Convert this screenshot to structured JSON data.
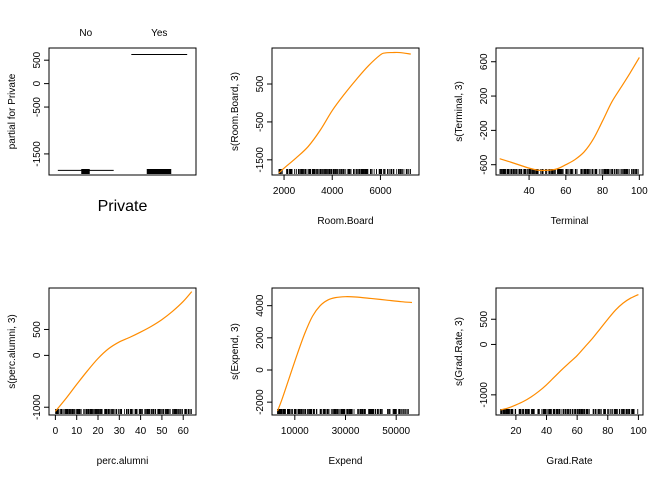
{
  "colors": {
    "curve": "#ff8c00",
    "axis": "#000000",
    "rug": "#000000"
  },
  "chart_data": [
    {
      "type": "bar",
      "name": "private",
      "categories": [
        "No",
        "Yes"
      ],
      "values": [
        -1850,
        620
      ],
      "title": "",
      "xlabel": "Private",
      "ylabel": "partial for Private",
      "ylim": [
        -1950,
        760
      ],
      "yticks": [
        "500",
        "0",
        "-500",
        "-1500"
      ],
      "ytick_values": [
        500,
        0,
        -500,
        -1500
      ]
    },
    {
      "type": "line",
      "name": "room",
      "xlabel": "Room.Board",
      "ylabel": "s(Room.Board, 3)",
      "xlim": [
        1500,
        7600
      ],
      "ylim": [
        -1900,
        1450
      ],
      "xticks": [
        "2000",
        "4000",
        "6000"
      ],
      "xtick_values": [
        2000,
        4000,
        6000
      ],
      "yticks": [
        "500",
        "-500",
        "-1500"
      ],
      "ytick_values": [
        500,
        -500,
        -1500
      ],
      "x": [
        1780,
        2000,
        2500,
        3000,
        3500,
        4000,
        4500,
        5000,
        5500,
        6000,
        6200,
        6500,
        6800,
        7262
      ],
      "y": [
        -1850,
        -1720,
        -1450,
        -1150,
        -720,
        -200,
        230,
        620,
        980,
        1270,
        1320,
        1330,
        1330,
        1290
      ],
      "rug_range": [
        1780,
        7262
      ]
    },
    {
      "type": "line",
      "name": "terminal",
      "xlabel": "Terminal",
      "ylabel": "s(Terminal, 3)",
      "xlim": [
        22,
        102
      ],
      "ylim": [
        -720,
        760
      ],
      "xticks": [
        "40",
        "60",
        "80",
        "100"
      ],
      "xtick_values": [
        40,
        60,
        80,
        100
      ],
      "yticks": [
        "600",
        "200",
        "-200",
        "-600"
      ],
      "ytick_values": [
        600,
        200,
        -200,
        -600
      ],
      "x": [
        24,
        30,
        40,
        45,
        50,
        55,
        60,
        65,
        70,
        75,
        80,
        85,
        90,
        95,
        100
      ],
      "y": [
        -530,
        -570,
        -640,
        -665,
        -665,
        -650,
        -600,
        -540,
        -450,
        -300,
        -90,
        130,
        300,
        470,
        650
      ],
      "rug_range": [
        24,
        100
      ]
    },
    {
      "type": "line",
      "name": "alumni",
      "xlabel": "perc.alumni",
      "ylabel": "s(perc.alumni, 3)",
      "xlim": [
        -3,
        66
      ],
      "ylim": [
        -1150,
        1300
      ],
      "xticks": [
        "0",
        "10",
        "20",
        "30",
        "40",
        "50",
        "60"
      ],
      "xtick_values": [
        0,
        10,
        20,
        30,
        40,
        50,
        60
      ],
      "yticks": [
        "500",
        "0",
        "-1000"
      ],
      "ytick_values": [
        500,
        0,
        -1000
      ],
      "x": [
        0,
        5,
        10,
        15,
        20,
        25,
        30,
        35,
        40,
        45,
        50,
        55,
        60,
        64
      ],
      "y": [
        -1080,
        -830,
        -560,
        -300,
        -60,
        130,
        260,
        350,
        450,
        560,
        690,
        850,
        1040,
        1230
      ],
      "rug_range": [
        0,
        64
      ]
    },
    {
      "type": "line",
      "name": "expend",
      "xlabel": "Expend",
      "ylabel": "s(Expend, 3)",
      "xlim": [
        1000,
        59000
      ],
      "ylim": [
        -2800,
        5100
      ],
      "xticks": [
        "10000",
        "30000",
        "50000"
      ],
      "xtick_values": [
        10000,
        30000,
        50000
      ],
      "yticks": [
        "4000",
        "2000",
        "0",
        "-2000"
      ],
      "ytick_values": [
        4000,
        2000,
        0,
        -2000
      ],
      "x": [
        3186,
        5000,
        8000,
        11000,
        14000,
        17000,
        20000,
        23000,
        26000,
        30000,
        34000,
        40000,
        46000,
        52000,
        56233
      ],
      "y": [
        -2550,
        -1800,
        -400,
        1000,
        2300,
        3350,
        4000,
        4350,
        4500,
        4560,
        4540,
        4450,
        4350,
        4250,
        4200
      ],
      "rug_range": [
        3186,
        56233
      ]
    },
    {
      "type": "line",
      "name": "grad",
      "xlabel": "Grad.Rate",
      "ylabel": "s(Grad.Rate, 3)",
      "xlim": [
        7,
        103
      ],
      "ylim": [
        -1400,
        1120
      ],
      "xticks": [
        "20",
        "40",
        "60",
        "80",
        "100"
      ],
      "xtick_values": [
        20,
        40,
        60,
        80,
        100
      ],
      "yticks": [
        "500",
        "0",
        "-1000"
      ],
      "ytick_values": [
        500,
        0,
        -1000
      ],
      "x": [
        10,
        15,
        20,
        25,
        30,
        35,
        40,
        45,
        50,
        55,
        60,
        65,
        70,
        75,
        80,
        85,
        90,
        95,
        100
      ],
      "y": [
        -1300,
        -1260,
        -1200,
        -1130,
        -1040,
        -930,
        -800,
        -650,
        -500,
        -360,
        -220,
        -50,
        120,
        310,
        500,
        680,
        820,
        920,
        990
      ],
      "rug_range": [
        10,
        100
      ]
    }
  ]
}
